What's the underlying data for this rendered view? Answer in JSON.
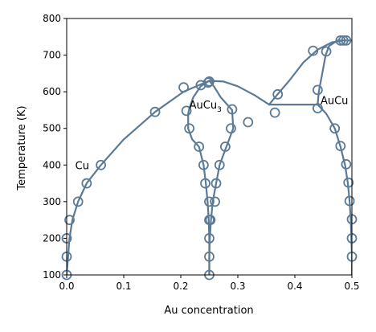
{
  "chart_data": {
    "type": "scatter",
    "xlabel": "Au concentration",
    "ylabel": "Temperature (K)",
    "xlim": [
      0,
      0.5
    ],
    "ylim": [
      100,
      800
    ],
    "x_ticks": [
      0.0,
      0.1,
      0.2,
      0.3,
      0.4,
      0.5
    ],
    "x_tick_labels": [
      "0.0",
      "0.1",
      "0.2",
      "0.3",
      "0.4",
      "0.5"
    ],
    "y_ticks": [
      100,
      200,
      300,
      400,
      500,
      600,
      700,
      800
    ],
    "y_tick_labels": [
      "100",
      "200",
      "300",
      "400",
      "500",
      "600",
      "700",
      "800"
    ],
    "grid": false,
    "color": "#5b7a96",
    "annotations": [
      {
        "text": "Cu",
        "x": 0.015,
        "y": 400
      },
      {
        "text": "AuCu",
        "sub": "3",
        "x": 0.215,
        "y": 565
      },
      {
        "text": "AuCu",
        "x": 0.445,
        "y": 577
      }
    ],
    "series": [
      {
        "kind": "line",
        "points": [
          [
            0,
            100
          ],
          [
            0.005,
            200
          ],
          [
            0.01,
            250
          ],
          [
            0.02,
            300
          ],
          [
            0.035,
            350
          ],
          [
            0.06,
            400
          ],
          [
            0.1,
            470
          ],
          [
            0.155,
            545
          ],
          [
            0.205,
            600
          ],
          [
            0.235,
            620
          ],
          [
            0.25,
            630
          ]
        ]
      },
      {
        "kind": "line",
        "points": [
          [
            0.25,
            630
          ],
          [
            0.275,
            628
          ],
          [
            0.3,
            615
          ],
          [
            0.33,
            590
          ],
          [
            0.355,
            565
          ]
        ]
      },
      {
        "kind": "line",
        "points": [
          [
            0.25,
            630
          ],
          [
            0.235,
            615
          ],
          [
            0.222,
            585
          ],
          [
            0.215,
            555
          ],
          [
            0.213,
            540
          ],
          [
            0.213,
            500
          ],
          [
            0.22,
            470
          ],
          [
            0.232,
            450
          ],
          [
            0.24,
            400
          ],
          [
            0.244,
            350
          ],
          [
            0.247,
            300
          ],
          [
            0.249,
            250
          ],
          [
            0.25,
            200
          ],
          [
            0.25,
            150
          ],
          [
            0.25,
            100
          ]
        ]
      },
      {
        "kind": "line",
        "points": [
          [
            0.25,
            630
          ],
          [
            0.258,
            615
          ],
          [
            0.27,
            585
          ],
          [
            0.29,
            550
          ],
          [
            0.292,
            500
          ],
          [
            0.28,
            450
          ],
          [
            0.268,
            400
          ],
          [
            0.262,
            350
          ],
          [
            0.256,
            300
          ],
          [
            0.253,
            250
          ],
          [
            0.251,
            200
          ],
          [
            0.25,
            150
          ],
          [
            0.25,
            100
          ]
        ]
      },
      {
        "kind": "line",
        "points": [
          [
            0.355,
            565
          ],
          [
            0.368,
            590
          ],
          [
            0.39,
            630
          ],
          [
            0.415,
            680
          ],
          [
            0.44,
            715
          ],
          [
            0.465,
            735
          ],
          [
            0.485,
            740
          ],
          [
            0.5,
            740
          ]
        ]
      },
      {
        "kind": "line",
        "points": [
          [
            0.355,
            565
          ],
          [
            0.44,
            565
          ]
        ]
      },
      {
        "kind": "line",
        "points": [
          [
            0.44,
            565
          ],
          [
            0.442,
            600
          ],
          [
            0.448,
            650
          ],
          [
            0.454,
            700
          ],
          [
            0.46,
            725
          ],
          [
            0.475,
            740
          ],
          [
            0.49,
            740
          ]
        ]
      },
      {
        "kind": "line",
        "points": [
          [
            0.44,
            565
          ],
          [
            0.455,
            540
          ],
          [
            0.47,
            500
          ],
          [
            0.48,
            450
          ],
          [
            0.488,
            400
          ],
          [
            0.493,
            350
          ],
          [
            0.496,
            300
          ],
          [
            0.498,
            250
          ],
          [
            0.499,
            200
          ],
          [
            0.5,
            150
          ],
          [
            0.5,
            100
          ]
        ]
      },
      {
        "kind": "markers",
        "points": [
          [
            0.0,
            100
          ],
          [
            0.0,
            150
          ],
          [
            0.0,
            200
          ],
          [
            0.005,
            250
          ],
          [
            0.02,
            300
          ],
          [
            0.035,
            350
          ],
          [
            0.06,
            400
          ],
          [
            0.155,
            545
          ],
          [
            0.205,
            612
          ],
          [
            0.235,
            618
          ],
          [
            0.25,
            628
          ],
          [
            0.248,
            625
          ],
          [
            0.21,
            548
          ],
          [
            0.215,
            500
          ],
          [
            0.232,
            450
          ],
          [
            0.24,
            400
          ],
          [
            0.243,
            350
          ],
          [
            0.25,
            300
          ],
          [
            0.25,
            250
          ],
          [
            0.252,
            250
          ],
          [
            0.25,
            200
          ],
          [
            0.25,
            150
          ],
          [
            0.25,
            100
          ],
          [
            0.29,
            552
          ],
          [
            0.288,
            500
          ],
          [
            0.278,
            450
          ],
          [
            0.268,
            400
          ],
          [
            0.262,
            350
          ],
          [
            0.26,
            300
          ],
          [
            0.318,
            517
          ],
          [
            0.37,
            593
          ],
          [
            0.365,
            543
          ],
          [
            0.432,
            712
          ],
          [
            0.455,
            710
          ],
          [
            0.48,
            740
          ],
          [
            0.485,
            740
          ],
          [
            0.49,
            740
          ],
          [
            0.44,
            605
          ],
          [
            0.44,
            555
          ],
          [
            0.47,
            500
          ],
          [
            0.48,
            452
          ],
          [
            0.49,
            402
          ],
          [
            0.494,
            352
          ],
          [
            0.496,
            302
          ],
          [
            0.5,
            252
          ],
          [
            0.5,
            200
          ],
          [
            0.5,
            150
          ]
        ]
      }
    ]
  }
}
